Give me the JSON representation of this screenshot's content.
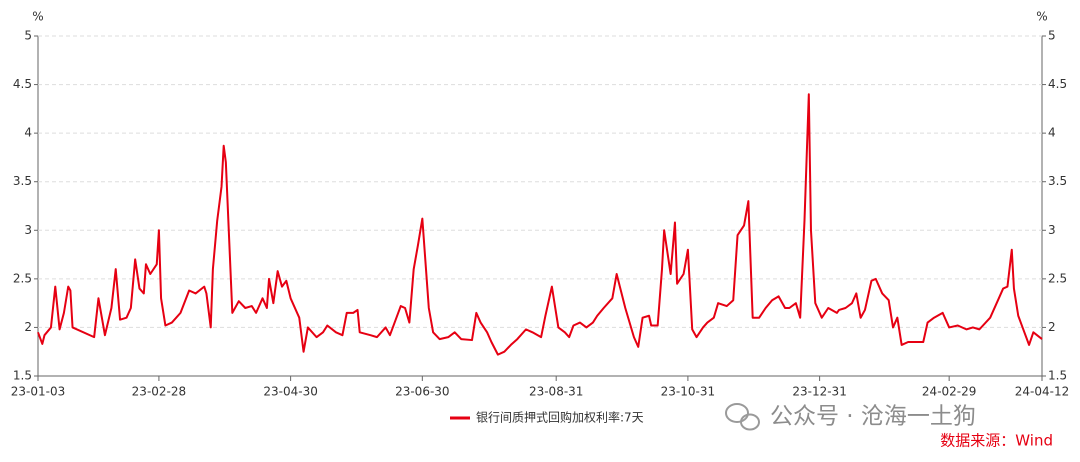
{
  "chart_data": {
    "type": "line",
    "x": [
      "23-01-03",
      "23-01-05",
      "23-01-06",
      "23-01-09",
      "23-01-11",
      "23-01-13",
      "23-01-15",
      "23-01-17",
      "23-01-18",
      "23-01-19",
      "23-01-29",
      "23-01-31",
      "23-02-03",
      "23-02-06",
      "23-02-08",
      "23-02-10",
      "23-02-13",
      "23-02-15",
      "23-02-17",
      "23-02-19",
      "23-02-21",
      "23-02-22",
      "23-02-24",
      "23-02-27",
      "23-02-28",
      "23-03-01",
      "23-03-03",
      "23-03-06",
      "23-03-10",
      "23-03-14",
      "23-03-17",
      "23-03-21",
      "23-03-22",
      "23-03-24",
      "23-03-25",
      "23-03-27",
      "23-03-29",
      "23-03-30",
      "23-03-31",
      "23-04-03",
      "23-04-06",
      "23-04-09",
      "23-04-12",
      "23-04-14",
      "23-04-17",
      "23-04-19",
      "23-04-20",
      "23-04-22",
      "23-04-24",
      "23-04-26",
      "23-04-28",
      "23-04-30",
      "23-05-04",
      "23-05-06",
      "23-05-08",
      "23-05-12",
      "23-05-15",
      "23-05-17",
      "23-05-21",
      "23-05-24",
      "23-05-26",
      "23-05-29",
      "23-05-31",
      "23-06-01",
      "23-06-06",
      "23-06-09",
      "23-06-13",
      "23-06-15",
      "23-06-20",
      "23-06-22",
      "23-06-24",
      "23-06-26",
      "23-06-28",
      "23-06-30",
      "23-07-03",
      "23-07-05",
      "23-07-08",
      "23-07-12",
      "23-07-15",
      "23-07-18",
      "23-07-23",
      "23-07-25",
      "23-07-27",
      "23-07-30",
      "23-08-01",
      "23-08-04",
      "23-08-07",
      "23-08-10",
      "23-08-13",
      "23-08-17",
      "23-08-20",
      "23-08-24",
      "23-08-26",
      "23-08-29",
      "23-09-01",
      "23-09-04",
      "23-09-06",
      "23-09-08",
      "23-09-11",
      "23-09-14",
      "23-09-17",
      "23-09-19",
      "23-09-22",
      "23-09-26",
      "23-09-28",
      "23-10-02",
      "23-10-06",
      "23-10-08",
      "23-10-10",
      "23-10-13",
      "23-10-14",
      "23-10-17",
      "23-10-19",
      "23-10-20",
      "23-10-23",
      "23-10-25",
      "23-10-26",
      "23-10-29",
      "23-10-31",
      "23-11-02",
      "23-11-04",
      "23-11-07",
      "23-11-09",
      "23-11-12",
      "23-11-14",
      "23-11-18",
      "23-11-21",
      "23-11-23",
      "23-11-26",
      "23-11-28",
      "23-11-30",
      "23-12-03",
      "23-12-06",
      "23-12-09",
      "23-12-12",
      "23-12-15",
      "23-12-17",
      "23-12-20",
      "23-12-22",
      "23-12-24",
      "23-12-26",
      "23-12-27",
      "23-12-29",
      "24-01-01",
      "24-01-04",
      "24-01-08",
      "24-01-09",
      "24-01-12",
      "24-01-15",
      "24-01-17",
      "24-01-19",
      "24-01-21",
      "24-01-24",
      "24-01-26",
      "24-01-29",
      "24-02-01",
      "24-02-03",
      "24-02-05",
      "24-02-07",
      "24-02-10",
      "24-02-17",
      "24-02-19",
      "24-02-22",
      "24-02-26",
      "24-02-29",
      "24-03-04",
      "24-03-08",
      "24-03-11",
      "24-03-14",
      "24-03-19",
      "24-03-23",
      "24-03-25",
      "24-03-27",
      "24-03-29",
      "24-03-30",
      "24-04-01",
      "24-04-03",
      "24-04-06",
      "24-04-08",
      "24-04-12"
    ],
    "series": [
      {
        "name": "银行间质押式回购加权利率:7天",
        "color": "#e60012",
        "values": [
          1.95,
          1.83,
          1.92,
          2.0,
          2.42,
          1.98,
          2.15,
          2.42,
          2.38,
          2.0,
          1.9,
          2.3,
          1.92,
          2.2,
          2.6,
          2.08,
          2.1,
          2.2,
          2.7,
          2.4,
          2.35,
          2.65,
          2.55,
          2.65,
          3.0,
          2.3,
          2.02,
          2.05,
          2.15,
          2.38,
          2.35,
          2.42,
          2.35,
          2.0,
          2.6,
          3.1,
          3.45,
          3.87,
          3.7,
          2.15,
          2.27,
          2.2,
          2.22,
          2.15,
          2.3,
          2.2,
          2.5,
          2.25,
          2.58,
          2.42,
          2.48,
          2.3,
          2.1,
          1.75,
          2.0,
          1.9,
          1.95,
          2.02,
          1.95,
          1.92,
          2.15,
          2.15,
          2.18,
          1.95,
          1.92,
          1.9,
          2.0,
          1.92,
          2.22,
          2.2,
          2.05,
          2.6,
          2.85,
          3.12,
          2.2,
          1.95,
          1.88,
          1.9,
          1.95,
          1.88,
          1.87,
          2.15,
          2.05,
          1.95,
          1.85,
          1.72,
          1.75,
          1.82,
          1.88,
          1.98,
          1.95,
          1.9,
          2.12,
          2.42,
          2.0,
          1.95,
          1.9,
          2.02,
          2.05,
          2.0,
          2.05,
          2.12,
          2.2,
          2.3,
          2.55,
          2.2,
          1.9,
          1.8,
          2.1,
          2.12,
          2.02,
          2.02,
          2.6,
          3.0,
          2.55,
          3.08,
          2.45,
          2.55,
          2.8,
          1.98,
          1.9,
          2.0,
          2.05,
          2.1,
          2.25,
          2.22,
          2.28,
          2.95,
          3.05,
          3.3,
          2.1,
          2.1,
          2.2,
          2.28,
          2.32,
          2.2,
          2.2,
          2.25,
          2.1,
          3.1,
          4.4,
          3.0,
          2.25,
          2.1,
          2.2,
          2.15,
          2.18,
          2.2,
          2.25,
          2.35,
          2.1,
          2.18,
          2.48,
          2.5,
          2.35,
          2.28,
          2.0,
          2.1,
          1.82,
          1.85,
          1.85,
          2.05,
          2.1,
          2.15,
          2.0,
          2.02,
          1.98,
          2.0,
          1.98,
          2.1,
          2.3,
          2.4,
          2.42,
          2.8,
          2.4,
          2.12,
          2.0,
          1.82,
          1.95,
          1.88
        ]
      }
    ],
    "xticks": [
      "23-01-03",
      "23-02-28",
      "23-04-30",
      "23-06-30",
      "23-08-31",
      "23-10-31",
      "23-12-31",
      "24-02-29",
      "24-04-12"
    ],
    "ylim": [
      1.5,
      5
    ],
    "yticks": [
      1.5,
      2,
      2.5,
      3,
      3.5,
      4,
      4.5,
      5
    ],
    "y2lim": [
      1.5,
      5
    ],
    "y2ticks": [
      1.5,
      2,
      2.5,
      3,
      3.5,
      4,
      4.5,
      5
    ],
    "y_unit": "%",
    "y2_unit": "%",
    "grid": true,
    "legend": "bottom",
    "watermark": "公众号 · 沧海一土狗",
    "source": "数据来源：Wind"
  }
}
